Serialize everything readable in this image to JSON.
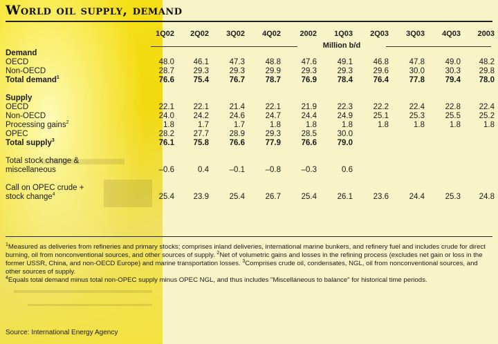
{
  "title": "World oil supply, demand",
  "unit": "Million b/d",
  "columns": [
    "1Q02",
    "2Q02",
    "3Q02",
    "4Q02",
    "2002",
    "1Q03",
    "2Q03",
    "3Q03",
    "4Q03",
    "2003"
  ],
  "rows": [
    {
      "type": "section",
      "label": "Demand"
    },
    {
      "type": "data",
      "label": "OECD",
      "values": [
        "48.0",
        "46.1",
        "47.3",
        "48.8",
        "47.6",
        "49.1",
        "46.8",
        "47.8",
        "49.0",
        "48.2"
      ]
    },
    {
      "type": "data",
      "label": "Non-OECD",
      "values": [
        "28.7",
        "29.3",
        "29.3",
        "29.9",
        "29.3",
        "29.3",
        "29.6",
        "30.0",
        "30.3",
        "29.8"
      ]
    },
    {
      "type": "bold",
      "label": "Total demand",
      "sup": "1",
      "values": [
        "76.6",
        "75.4",
        "76.7",
        "78.7",
        "76.9",
        "78.4",
        "76.4",
        "77.8",
        "79.4",
        "78.0"
      ]
    },
    {
      "type": "spacer"
    },
    {
      "type": "section",
      "label": "Supply"
    },
    {
      "type": "data",
      "label": "OECD",
      "values": [
        "22.1",
        "22.1",
        "21.4",
        "22.1",
        "21.9",
        "22.3",
        "22.2",
        "22.4",
        "22.8",
        "22.4"
      ]
    },
    {
      "type": "data",
      "label": "Non-OECD",
      "values": [
        "24.0",
        "24.2",
        "24.6",
        "24.7",
        "24.4",
        "24.9",
        "25.1",
        "25.3",
        "25.5",
        "25.2"
      ]
    },
    {
      "type": "data",
      "label": "Processing gains",
      "sup": "2",
      "values": [
        "1.8",
        "1.7",
        "1.7",
        "1.8",
        "1.8",
        "1.8",
        "1.8",
        "1.8",
        "1.8",
        "1.8"
      ]
    },
    {
      "type": "data",
      "label": "OPEC",
      "values": [
        "28.2",
        "27.7",
        "28.9",
        "29.3",
        "28.5",
        "30.0",
        "",
        "",
        "",
        ""
      ]
    },
    {
      "type": "bold",
      "label": "Total supply",
      "sup": "3",
      "values": [
        "76.1",
        "75.8",
        "76.6",
        "77.9",
        "76.6",
        "79.0",
        "",
        "",
        "",
        ""
      ]
    },
    {
      "type": "spacer"
    },
    {
      "type": "data",
      "label": "Total stock change &",
      "values": [
        "",
        "",
        "",
        "",
        "",
        "",
        "",
        "",
        "",
        ""
      ]
    },
    {
      "type": "indent",
      "label": "miscellaneous",
      "values": [
        "–0.6",
        "0.4",
        "–0.1",
        "–0.8",
        "–0.3",
        "0.6",
        "",
        "",
        "",
        ""
      ]
    },
    {
      "type": "spacer"
    },
    {
      "type": "data",
      "label": "Call on OPEC crude +",
      "values": [
        "",
        "",
        "",
        "",
        "",
        "",
        "",
        "",
        "",
        ""
      ]
    },
    {
      "type": "indent",
      "label": "stock change",
      "sup": "4",
      "values": [
        "25.4",
        "23.9",
        "25.4",
        "26.7",
        "25.4",
        "26.1",
        "23.6",
        "24.4",
        "25.3",
        "24.8"
      ]
    }
  ],
  "footnotes": [
    "Measured as deliveries from refineries and primary stocks; comprises inland deliveries, international marine bunkers, and refinery fuel and includes crude for direct burning, oil from nonconventional sources, and other sources of supply.",
    "Net of volumetric gains and losses in the refining process (excludes net gain or loss in the former USSR, China, and non-OECD Europe) and marine transportation losses.",
    "Comprises crude oil, condensates, NGL, oil from nonconventional sources, and other sources of supply.",
    "Equals total demand minus total non-OPEC supply minus OPEC NGL, and thus includes \"Miscellaneous to balance\" for historical time periods."
  ],
  "source": "Source: International Energy Agency"
}
